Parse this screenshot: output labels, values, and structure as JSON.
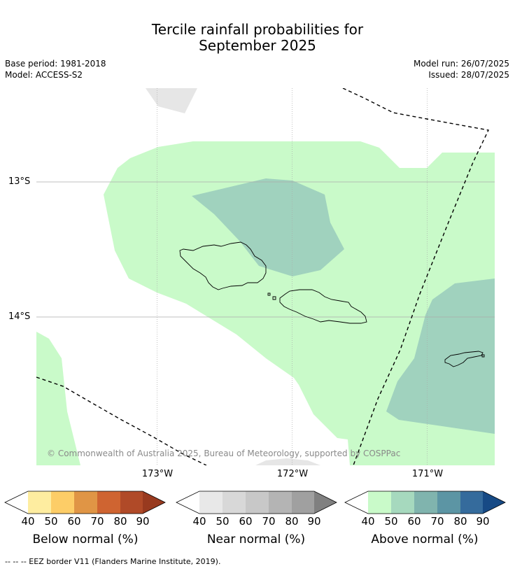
{
  "title_line1": "Tercile rainfall probabilities for",
  "title_line2": "September 2025",
  "base_period": "Base period: 1981-2018",
  "model": "Model: ACCESS-S2",
  "model_run": "Model run: 26/07/2025",
  "issued": "Issued: 28/07/2025",
  "lat_labels": [
    "13°S",
    "14°S"
  ],
  "lon_labels": [
    "173°W",
    "172°W",
    "171°W"
  ],
  "copyright": "© Commonwealth of Australia 2025, Bureau of Meteorology, supported by COSPPac",
  "colorbars": [
    {
      "title": "Below normal (%)",
      "ticks": [
        "40",
        "50",
        "60",
        "70",
        "80",
        "90"
      ],
      "colors": [
        "#ffffff",
        "#feeda0",
        "#fdcd67",
        "#e09545",
        "#cf6431",
        "#b04a28",
        "#983a1f"
      ]
    },
    {
      "title": "Near normal (%)",
      "ticks": [
        "40",
        "50",
        "60",
        "70",
        "80",
        "90"
      ],
      "colors": [
        "#ffffff",
        "#e8e8e8",
        "#d8d8d8",
        "#c8c8c8",
        "#b4b4b4",
        "#a0a0a0",
        "#808080"
      ]
    },
    {
      "title": "Above normal (%)",
      "ticks": [
        "40",
        "50",
        "60",
        "70",
        "80",
        "90"
      ],
      "colors": [
        "#ffffff",
        "#c9fac9",
        "#a6d9be",
        "#80b4ae",
        "#5c95a4",
        "#356b9c",
        "#174a85"
      ]
    }
  ],
  "footer": "--  --  -- EEZ border V11 (Flanders Marine Institute, 2019)."
}
